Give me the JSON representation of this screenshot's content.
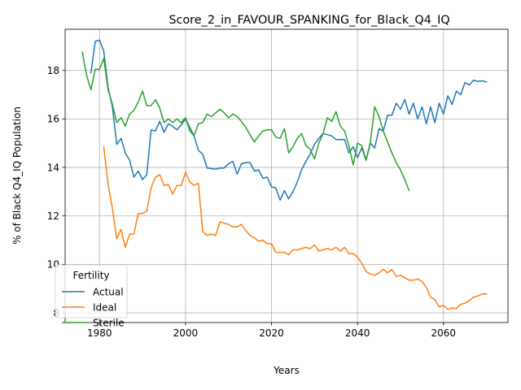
{
  "chart_data": {
    "type": "line",
    "title": "Score_2_in_FAVOUR_SPANKING_for_Black_Q4_IQ",
    "xlabel": "Years",
    "ylabel": "% of Black Q4_IQ Population",
    "xlim": [
      1972,
      2075
    ],
    "ylim": [
      7.6,
      19.7
    ],
    "xticks": [
      1980,
      2000,
      2020,
      2040,
      2060
    ],
    "yticks": [
      8,
      10,
      12,
      14,
      16,
      18
    ],
    "grid": true,
    "legend": {
      "title": "Fertility",
      "placement": "lower-left"
    },
    "series": [
      {
        "name": "Actual",
        "color": "#1f77b4",
        "x": [
          1978,
          1979,
          1980,
          1981,
          1982,
          1983,
          1984,
          1985,
          1986,
          1987,
          1988,
          1989,
          1990,
          1991,
          1992,
          1993,
          1994,
          1995,
          1996,
          1997,
          1998,
          1999,
          2000,
          2001,
          2002,
          2003,
          2004,
          2005,
          2006,
          2007,
          2008,
          2009,
          2010,
          2011,
          2012,
          2013,
          2014,
          2015,
          2016,
          2017,
          2018,
          2019,
          2020,
          2021,
          2022,
          2023,
          2024,
          2025,
          2026,
          2027,
          2028,
          2029,
          2030,
          2031,
          2032,
          2033,
          2034,
          2035,
          2036,
          2037,
          2038,
          2039,
          2040,
          2041,
          2042,
          2043,
          2044,
          2045,
          2046,
          2047,
          2048,
          2049,
          2050,
          2051,
          2052,
          2053,
          2054,
          2055,
          2056,
          2057,
          2058,
          2059,
          2060,
          2061,
          2062,
          2063,
          2064,
          2065,
          2066,
          2067,
          2068,
          2069,
          2070
        ],
        "y": [
          17.9,
          19.2,
          19.25,
          18.8,
          17.3,
          16.5,
          14.95,
          15.2,
          14.6,
          14.3,
          13.6,
          13.85,
          13.5,
          13.7,
          15.55,
          15.5,
          15.9,
          15.45,
          15.8,
          15.7,
          15.55,
          15.75,
          16.0,
          15.65,
          15.3,
          14.7,
          14.55,
          13.98,
          13.95,
          13.93,
          13.97,
          13.98,
          14.15,
          14.25,
          13.72,
          14.15,
          14.2,
          14.2,
          13.85,
          13.9,
          13.55,
          13.6,
          13.2,
          13.15,
          12.65,
          13.05,
          12.7,
          13.0,
          13.4,
          13.9,
          14.25,
          14.55,
          14.95,
          15.2,
          15.4,
          15.35,
          15.3,
          15.15,
          15.15,
          15.15,
          14.6,
          14.85,
          14.4,
          14.8,
          14.3,
          15.0,
          14.8,
          15.6,
          15.5,
          16.15,
          16.15,
          16.65,
          16.4,
          16.8,
          16.2,
          16.65,
          16.0,
          16.5,
          15.8,
          16.5,
          15.85,
          16.65,
          16.2,
          16.95,
          16.6,
          17.15,
          17.0,
          17.5,
          17.4,
          17.6,
          17.55,
          17.57,
          17.52
        ]
      },
      {
        "name": "Ideal",
        "color": "#ff7f0e",
        "x": [
          1981,
          1982,
          1983,
          1984,
          1985,
          1986,
          1987,
          1988,
          1989,
          1990,
          1991,
          1992,
          1993,
          1994,
          1995,
          1996,
          1997,
          1998,
          1999,
          2000,
          2001,
          2002,
          2003,
          2004,
          2005,
          2006,
          2007,
          2008,
          2009,
          2010,
          2011,
          2012,
          2013,
          2014,
          2015,
          2016,
          2017,
          2018,
          2019,
          2020,
          2021,
          2022,
          2023,
          2024,
          2025,
          2026,
          2027,
          2028,
          2029,
          2030,
          2031,
          2032,
          2033,
          2034,
          2035,
          2036,
          2037,
          2038,
          2039,
          2040,
          2041,
          2042,
          2043,
          2044,
          2045,
          2046,
          2047,
          2048,
          2049,
          2050,
          2051,
          2052,
          2053,
          2054,
          2055,
          2056,
          2057,
          2058,
          2059,
          2060,
          2061,
          2062,
          2063,
          2064,
          2065,
          2066,
          2067,
          2068,
          2069,
          2070
        ],
        "y": [
          14.85,
          13.3,
          12.3,
          11.05,
          11.45,
          10.7,
          11.25,
          11.25,
          12.1,
          12.1,
          12.2,
          13.15,
          13.6,
          13.7,
          13.25,
          13.3,
          12.9,
          13.25,
          13.25,
          13.8,
          13.4,
          13.25,
          13.35,
          11.35,
          11.2,
          11.25,
          11.2,
          11.75,
          11.7,
          11.65,
          11.55,
          11.55,
          11.65,
          11.4,
          11.2,
          11.1,
          10.95,
          11.0,
          10.85,
          10.85,
          10.5,
          10.5,
          10.5,
          10.4,
          10.6,
          10.6,
          10.65,
          10.7,
          10.65,
          10.8,
          10.55,
          10.6,
          10.65,
          10.6,
          10.7,
          10.55,
          10.7,
          10.45,
          10.45,
          10.3,
          10.05,
          9.7,
          9.6,
          9.55,
          9.65,
          9.8,
          9.65,
          9.8,
          9.5,
          9.55,
          9.45,
          9.35,
          9.35,
          9.4,
          9.3,
          9.05,
          8.65,
          8.55,
          8.25,
          8.3,
          8.15,
          8.2,
          8.18,
          8.35,
          8.4,
          8.5,
          8.65,
          8.7,
          8.78,
          8.78
        ]
      },
      {
        "name": "Sterile",
        "color": "#2ca02c",
        "x": [
          1976,
          1977,
          1978,
          1979,
          1980,
          1981,
          1982,
          1983,
          1984,
          1985,
          1986,
          1987,
          1988,
          1989,
          1990,
          1991,
          1992,
          1993,
          1994,
          1995,
          1996,
          1997,
          1998,
          1999,
          2000,
          2001,
          2002,
          2003,
          2004,
          2005,
          2006,
          2007,
          2008,
          2009,
          2010,
          2011,
          2012,
          2013,
          2014,
          2015,
          2016,
          2017,
          2018,
          2019,
          2020,
          2021,
          2022,
          2023,
          2024,
          2025,
          2026,
          2027,
          2028,
          2029,
          2030,
          2031,
          2032,
          2033,
          2034,
          2035,
          2036,
          2037,
          2038,
          2039,
          2040,
          2041,
          2042,
          2043,
          2044,
          2045,
          2046,
          2047,
          2048,
          2049,
          2050,
          2051,
          2052
        ],
        "y": [
          18.75,
          17.8,
          17.2,
          18.05,
          18.05,
          18.5,
          17.2,
          16.6,
          15.85,
          16.05,
          15.7,
          16.2,
          16.35,
          16.7,
          17.15,
          16.55,
          16.55,
          16.8,
          16.45,
          15.85,
          16.0,
          15.85,
          16.0,
          15.85,
          16.05,
          15.5,
          15.3,
          15.8,
          15.85,
          16.2,
          16.1,
          16.25,
          16.4,
          16.25,
          16.05,
          16.2,
          16.1,
          15.9,
          15.65,
          15.35,
          15.05,
          15.3,
          15.5,
          15.55,
          15.55,
          15.25,
          15.2,
          15.6,
          14.6,
          14.85,
          15.2,
          15.4,
          14.9,
          14.75,
          14.35,
          15.0,
          15.4,
          16.05,
          15.9,
          16.3,
          15.7,
          15.5,
          14.9,
          14.1,
          15.0,
          14.9,
          14.3,
          15.05,
          16.5,
          16.1,
          15.5,
          15.05,
          14.6,
          14.2,
          13.9,
          13.5,
          13.05
        ]
      }
    ]
  }
}
